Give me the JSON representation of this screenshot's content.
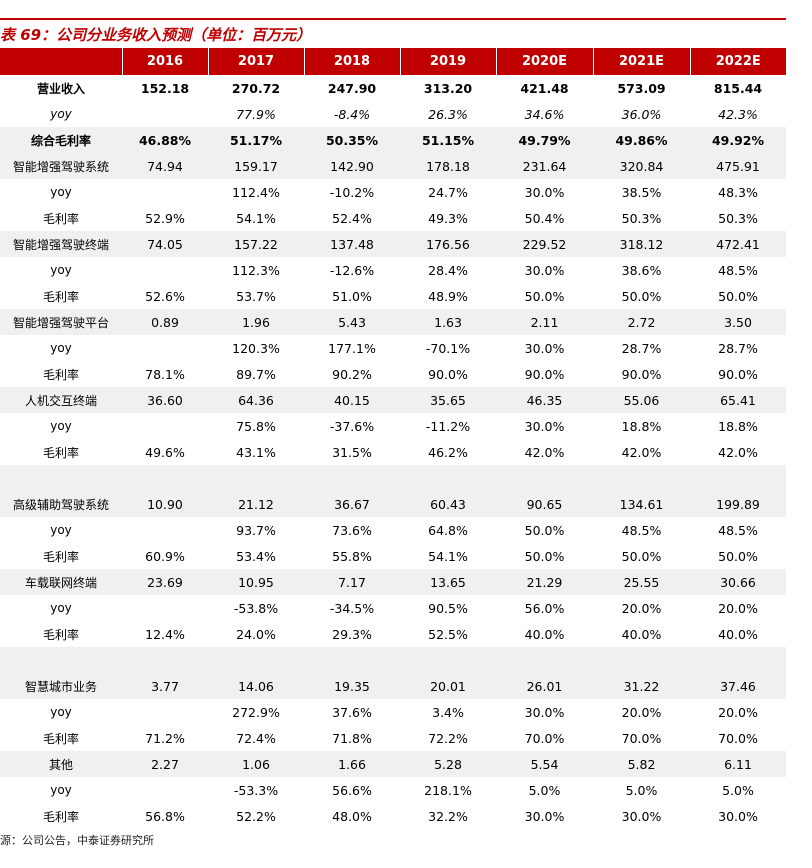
{
  "header": {
    "title": "表 69：公司分业务收入预测（单位：百万元）"
  },
  "table": {
    "columns": [
      "2016",
      "2017",
      "2018",
      "2019",
      "2020E",
      "2021E",
      "2022E"
    ],
    "rows": [
      {
        "label": "营业收入",
        "values": [
          "152.18",
          "270.72",
          "247.90",
          "313.20",
          "421.48",
          "573.09",
          "815.44"
        ]
      },
      {
        "label": "yoy",
        "values": [
          null,
          "77.9%",
          "-8.4%",
          "26.3%",
          "34.6%",
          "36.0%",
          "42.3%"
        ]
      },
      {
        "label": "综合毛利率",
        "values": [
          "46.88%",
          "51.17%",
          "50.35%",
          "51.15%",
          "49.79%",
          "49.86%",
          "49.92%"
        ]
      },
      {
        "label": "智能增强驾驶系统",
        "values": [
          "74.94",
          "159.17",
          "142.90",
          "178.18",
          "231.64",
          "320.84",
          "475.91"
        ]
      },
      {
        "label": "yoy",
        "values": [
          null,
          "112.4%",
          "-10.2%",
          "24.7%",
          "30.0%",
          "38.5%",
          "48.3%"
        ]
      },
      {
        "label": "毛利率",
        "values": [
          "52.9%",
          "54.1%",
          "52.4%",
          "49.3%",
          "50.4%",
          "50.3%",
          "50.3%"
        ]
      },
      {
        "label": "智能增强驾驶终端",
        "values": [
          "74.05",
          "157.22",
          "137.48",
          "176.56",
          "229.52",
          "318.12",
          "472.41"
        ]
      },
      {
        "label": "yoy",
        "values": [
          null,
          "112.3%",
          "-12.6%",
          "28.4%",
          "30.0%",
          "38.6%",
          "48.5%"
        ]
      },
      {
        "label": "毛利率",
        "values": [
          "52.6%",
          "53.7%",
          "51.0%",
          "48.9%",
          "50.0%",
          "50.0%",
          "50.0%"
        ]
      },
      {
        "label": "智能增强驾驶平台",
        "values": [
          "0.89",
          "1.96",
          "5.43",
          "1.63",
          "2.11",
          "2.72",
          "3.50"
        ]
      },
      {
        "label": "yoy",
        "values": [
          null,
          "120.3%",
          "177.1%",
          "-70.1%",
          "30.0%",
          "28.7%",
          "28.7%"
        ]
      },
      {
        "label": "毛利率",
        "values": [
          "78.1%",
          "89.7%",
          "90.2%",
          "90.0%",
          "90.0%",
          "90.0%",
          "90.0%"
        ]
      },
      {
        "label": "人机交互终端",
        "values": [
          "36.60",
          "64.36",
          "40.15",
          "35.65",
          "46.35",
          "55.06",
          "65.41"
        ]
      },
      {
        "label": "yoy",
        "values": [
          null,
          "75.8%",
          "-37.6%",
          "-11.2%",
          "30.0%",
          "18.8%",
          "18.8%"
        ]
      },
      {
        "label": "毛利率",
        "values": [
          "49.6%",
          "43.1%",
          "31.5%",
          "46.2%",
          "42.0%",
          "42.0%",
          "42.0%"
        ]
      },
      null,
      {
        "label": "高级辅助驾驶系统",
        "values": [
          "10.90",
          "21.12",
          "36.67",
          "60.43",
          "90.65",
          "134.61",
          "199.89"
        ]
      },
      {
        "label": "yoy",
        "values": [
          null,
          "93.7%",
          "73.6%",
          "64.8%",
          "50.0%",
          "48.5%",
          "48.5%"
        ]
      },
      {
        "label": "毛利率",
        "values": [
          "60.9%",
          "53.4%",
          "55.8%",
          "54.1%",
          "50.0%",
          "50.0%",
          "50.0%"
        ]
      },
      {
        "label": "车载联网终端",
        "values": [
          "23.69",
          "10.95",
          "7.17",
          "13.65",
          "21.29",
          "25.55",
          "30.66"
        ]
      },
      {
        "label": "yoy",
        "values": [
          null,
          "-53.8%",
          "-34.5%",
          "90.5%",
          "56.0%",
          "20.0%",
          "20.0%"
        ]
      },
      {
        "label": "毛利率",
        "values": [
          "12.4%",
          "24.0%",
          "29.3%",
          "52.5%",
          "40.0%",
          "40.0%",
          "40.0%"
        ]
      },
      null,
      {
        "label": "智慧城市业务",
        "values": [
          "3.77",
          "14.06",
          "19.35",
          "20.01",
          "26.01",
          "31.22",
          "37.46"
        ]
      },
      {
        "label": "yoy",
        "values": [
          null,
          "272.9%",
          "37.6%",
          "3.4%",
          "30.0%",
          "20.0%",
          "20.0%"
        ]
      },
      {
        "label": "毛利率",
        "values": [
          "71.2%",
          "72.4%",
          "71.8%",
          "72.2%",
          "70.0%",
          "70.0%",
          "70.0%"
        ]
      },
      {
        "label": "其他",
        "values": [
          "2.27",
          "1.06",
          "1.66",
          "5.28",
          "5.54",
          "5.82",
          "6.11"
        ]
      },
      {
        "label": "yoy",
        "values": [
          null,
          "-53.3%",
          "56.6%",
          "218.1%",
          "5.0%",
          "5.0%",
          "5.0%"
        ]
      },
      {
        "label": "毛利率",
        "values": [
          "56.8%",
          "52.2%",
          "48.0%",
          "32.2%",
          "30.0%",
          "30.0%",
          "30.0%"
        ]
      }
    ]
  },
  "footer": {
    "source": "源：公司公告，中泰证券研究所"
  }
}
